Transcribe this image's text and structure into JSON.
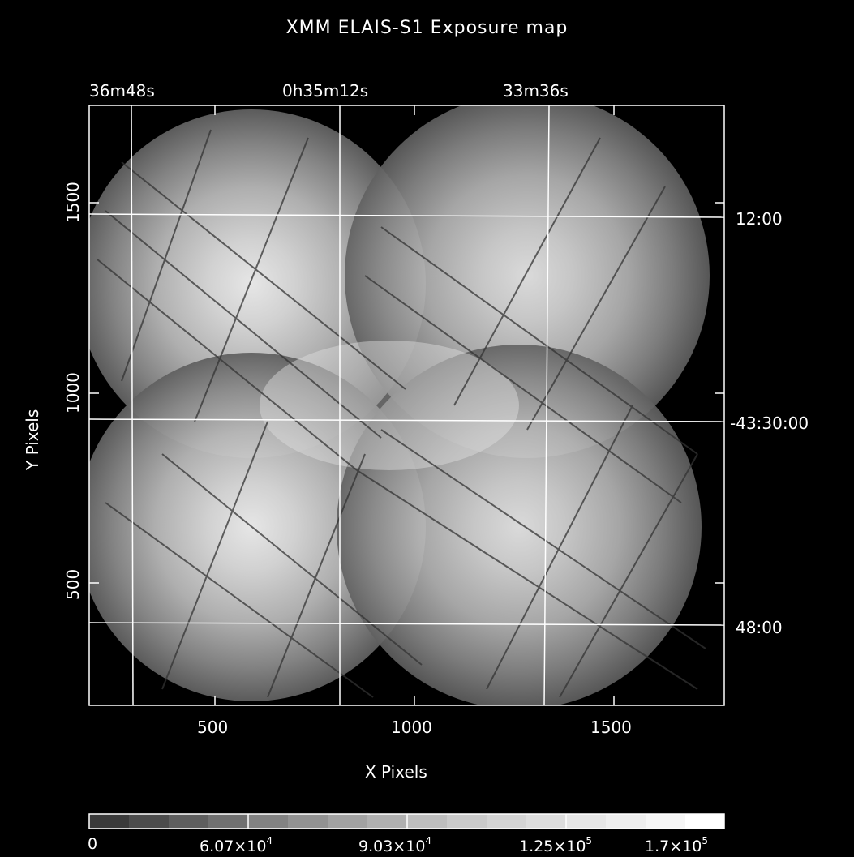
{
  "title": "XMM ELAIS-S1 Exposure map",
  "top_axis_labels": [
    "36m48s",
    "0h35m12s",
    "33m36s"
  ],
  "right_axis_labels": [
    "12:00",
    "-43:30:00",
    "48:00"
  ],
  "x_axis": {
    "label": "X Pixels",
    "ticks": [
      "500",
      "1000",
      "1500"
    ]
  },
  "y_axis": {
    "label": "Y Pixels",
    "ticks": [
      "1500",
      "1000",
      "500"
    ]
  },
  "colorbar": {
    "labels": [
      "0",
      "6.07×10",
      "9.03×10",
      "1.25×10",
      "1.7×10"
    ],
    "exponents": [
      "",
      "4",
      "4",
      "5",
      "5"
    ]
  },
  "colors": {
    "background": "#000000",
    "foreground": "#ffffff"
  }
}
